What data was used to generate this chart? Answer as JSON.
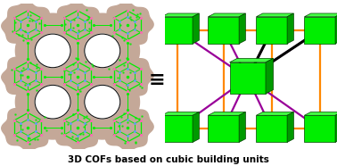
{
  "title": "3D COFs based on cubic building units",
  "title_fontsize": 7.5,
  "title_fontweight": "bold",
  "bg_color": "#ffffff",
  "equiv_symbol": "≡",
  "cube_front": "#00ee00",
  "cube_top": "#44ff44",
  "cube_right": "#009900",
  "cube_edge": "#004400",
  "orange_color": "#ff8800",
  "purple_color": "#990099",
  "black_color": "#000000",
  "blob_color": "#c4a898",
  "lw_orange": 1.6,
  "lw_purple": 1.6,
  "lw_black": 2.2
}
